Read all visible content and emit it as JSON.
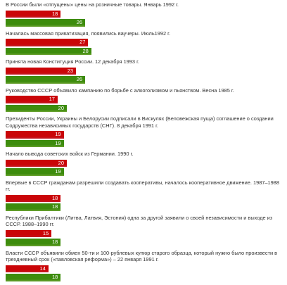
{
  "chart_data": {
    "type": "bar",
    "orientation": "horizontal",
    "categories": [
      "В России были «отпущены» цены на розничные товары. Январь 1992 г.",
      "Началась массовая приватизация, появились ваучеры. Июль1992 г.",
      "Принята новая Конституция России. 12 декабря 1993 г.",
      "Руководство СССР объявило кампанию по борьбе с алкоголизмом и пьянством. Весна 1985 г.",
      "Президенты России, Украины и Белорусии подписали в Вискулях (Беловежская пуща) соглашение о создании Содружества независимых государств (СНГ). 8 декабря 1991 г.",
      "Начало вывода советских войск из Германии. 1990 г.",
      "Впервые в СССР гражданам разрешили создавать кооперативы, началось кооперативное движение. 1987–1988 гг.",
      "Республики Прибалтики (Литва, Латвия, Эстония) одна за другой заявили о своей независимости и выходе из СССР. 1988–1990 гг.",
      "Власти СССР объявили обмен 50-ти и 100-рублевых купюр старого образца, который нужно было произвести в трехдневный срок («павловская реформа») – 22 января 1991 г."
    ],
    "series": [
      {
        "color": "#e3222e",
        "values": [
          18,
          27,
          23,
          17,
          19,
          20,
          18,
          15,
          14
        ]
      },
      {
        "color": "#7dbd3a",
        "values": [
          26,
          28,
          26,
          20,
          19,
          19,
          18,
          18,
          18
        ]
      }
    ]
  }
}
